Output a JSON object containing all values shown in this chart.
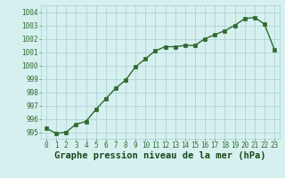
{
  "x": [
    0,
    1,
    2,
    3,
    4,
    5,
    6,
    7,
    8,
    9,
    10,
    11,
    12,
    13,
    14,
    15,
    16,
    17,
    18,
    19,
    20,
    21,
    22,
    23
  ],
  "y": [
    995.3,
    994.9,
    995.0,
    995.6,
    995.8,
    996.7,
    997.5,
    998.3,
    998.9,
    999.9,
    1000.5,
    1001.1,
    1001.4,
    1001.4,
    1001.5,
    1001.5,
    1002.0,
    1002.3,
    1002.6,
    1003.0,
    1003.5,
    1003.6,
    1003.1,
    1001.2
  ],
  "ylim": [
    994.5,
    1004.5
  ],
  "yticks": [
    995,
    996,
    997,
    998,
    999,
    1000,
    1001,
    1002,
    1003,
    1004
  ],
  "xticks": [
    0,
    1,
    2,
    3,
    4,
    5,
    6,
    7,
    8,
    9,
    10,
    11,
    12,
    13,
    14,
    15,
    16,
    17,
    18,
    19,
    20,
    21,
    22,
    23
  ],
  "line_color": "#2d6a2d",
  "marker_color": "#2d6a2d",
  "bg_color": "#d6f0f0",
  "grid_color": "#a8cece",
  "xlabel": "Graphe pression niveau de la mer (hPa)",
  "xlabel_color": "#1a4a1a",
  "tick_color": "#2d6a2d",
  "tick_fontsize": 5.5,
  "xlabel_fontsize": 7.5,
  "line_width": 1.0,
  "marker_size": 2.5
}
